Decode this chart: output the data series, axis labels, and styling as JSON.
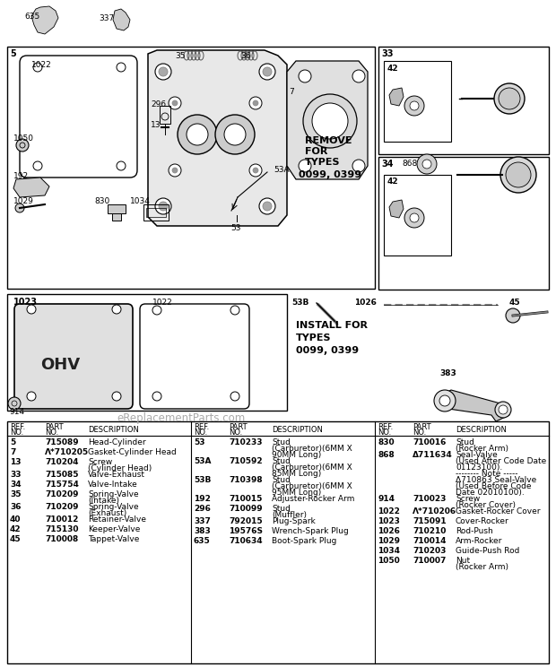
{
  "bg_color": "#ffffff",
  "watermark": "eReplacementParts.com",
  "col1_entries": [
    {
      "ref": "5",
      "part": "715089",
      "desc1": "Head-Cylinder",
      "desc2": ""
    },
    {
      "ref": "7",
      "part": "Λ*710205",
      "desc1": "Gasket-Cylinder Head",
      "desc2": ""
    },
    {
      "ref": "13",
      "part": "710204",
      "desc1": "Screw",
      "desc2": "(Cylinder Head)"
    },
    {
      "ref": "33",
      "part": "715085",
      "desc1": "Valve-Exhaust",
      "desc2": ""
    },
    {
      "ref": "34",
      "part": "715754",
      "desc1": "Valve-Intake",
      "desc2": ""
    },
    {
      "ref": "35",
      "part": "710209",
      "desc1": "Spring-Valve",
      "desc2": "(Intake)"
    },
    {
      "ref": "36",
      "part": "710209",
      "desc1": "Spring-Valve",
      "desc2": "(Exhaust)"
    },
    {
      "ref": "40",
      "part": "710012",
      "desc1": "Retainer-Valve",
      "desc2": ""
    },
    {
      "ref": "42",
      "part": "715130",
      "desc1": "Keeper-Valve",
      "desc2": ""
    },
    {
      "ref": "45",
      "part": "710008",
      "desc1": "Tappet-Valve",
      "desc2": ""
    }
  ],
  "col2_entries": [
    {
      "ref": "53",
      "part": "710233",
      "desc1": "Stud",
      "desc2": "(Carburetor)(6MM X",
      "desc3": "90MM Long)"
    },
    {
      "ref": "53A",
      "part": "710592",
      "desc1": "Stud",
      "desc2": "(Carburetor)(6MM X",
      "desc3": "85MM Long)"
    },
    {
      "ref": "53B",
      "part": "710398",
      "desc1": "Stud",
      "desc2": "(Carburetor)(6MM X",
      "desc3": "95MM Long)"
    },
    {
      "ref": "192",
      "part": "710015",
      "desc1": "Adjuster-Rocker Arm",
      "desc2": "",
      "desc3": ""
    },
    {
      "ref": "296",
      "part": "710099",
      "desc1": "Stud",
      "desc2": "(Muffler)",
      "desc3": ""
    },
    {
      "ref": "337",
      "part": "792015",
      "desc1": "Plug-Spark",
      "desc2": "",
      "desc3": ""
    },
    {
      "ref": "383",
      "part": "19576S",
      "desc1": "Wrench-Spark Plug",
      "desc2": "",
      "desc3": ""
    },
    {
      "ref": "635",
      "part": "710634",
      "desc1": "Boot-Spark Plug",
      "desc2": "",
      "desc3": ""
    }
  ],
  "col3_entries": [
    {
      "ref": "830",
      "part": "710016",
      "desc1": "Stud",
      "desc2": "(Rocker Arm)",
      "desc3": "",
      "desc4": ""
    },
    {
      "ref": "868",
      "part": "Δ711634",
      "desc1": "Seal-Valve",
      "desc2": "(Used After Code Date",
      "desc3": "01123100).",
      "desc4": ""
    },
    {
      "ref": "",
      "part": "",
      "desc1": "-------- Note -----",
      "desc2": "Δ710863 Seal-Valve",
      "desc3": "(Used Before Code",
      "desc4": "Date 02010100)."
    },
    {
      "ref": "914",
      "part": "710023",
      "desc1": "Screw",
      "desc2": "(Rocker Cover)",
      "desc3": "",
      "desc4": ""
    },
    {
      "ref": "1022",
      "part": "Λ*710206",
      "desc1": "Gasket-Rocker Cover",
      "desc2": "",
      "desc3": "",
      "desc4": ""
    },
    {
      "ref": "1023",
      "part": "715091",
      "desc1": "Cover-Rocker",
      "desc2": "",
      "desc3": "",
      "desc4": ""
    },
    {
      "ref": "1026",
      "part": "710210",
      "desc1": "Rod-Push",
      "desc2": "",
      "desc3": "",
      "desc4": ""
    },
    {
      "ref": "1029",
      "part": "710014",
      "desc1": "Arm-Rocker",
      "desc2": "",
      "desc3": "",
      "desc4": ""
    },
    {
      "ref": "1034",
      "part": "710203",
      "desc1": "Guide-Push Rod",
      "desc2": "",
      "desc3": "",
      "desc4": ""
    },
    {
      "ref": "1050",
      "part": "710007",
      "desc1": "Nut",
      "desc2": "(Rocker Arm)",
      "desc3": "",
      "desc4": ""
    }
  ]
}
